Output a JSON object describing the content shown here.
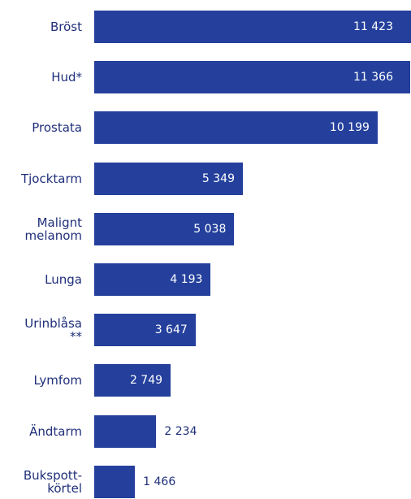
{
  "chart_data": {
    "type": "bar",
    "orientation": "horizontal",
    "categories": [
      "Bröst",
      "Hud*",
      "Prostata",
      "Tjocktarm",
      "Malignt\nmelanom",
      "Lunga",
      "Urinblåsa\n**",
      "Lymfom",
      "Ändtarm",
      "Bukspott-\nkörtel"
    ],
    "values": [
      11423,
      11366,
      10199,
      5349,
      5038,
      4193,
      3647,
      2749,
      2234,
      1466
    ],
    "value_labels": [
      "11 423",
      "11 366",
      "10 199",
      "5 349",
      "5 038",
      "4 193",
      "3 647",
      "2 749",
      "2 234",
      "1 466"
    ],
    "color": "#24409c",
    "xlim": [
      0,
      11400
    ]
  }
}
